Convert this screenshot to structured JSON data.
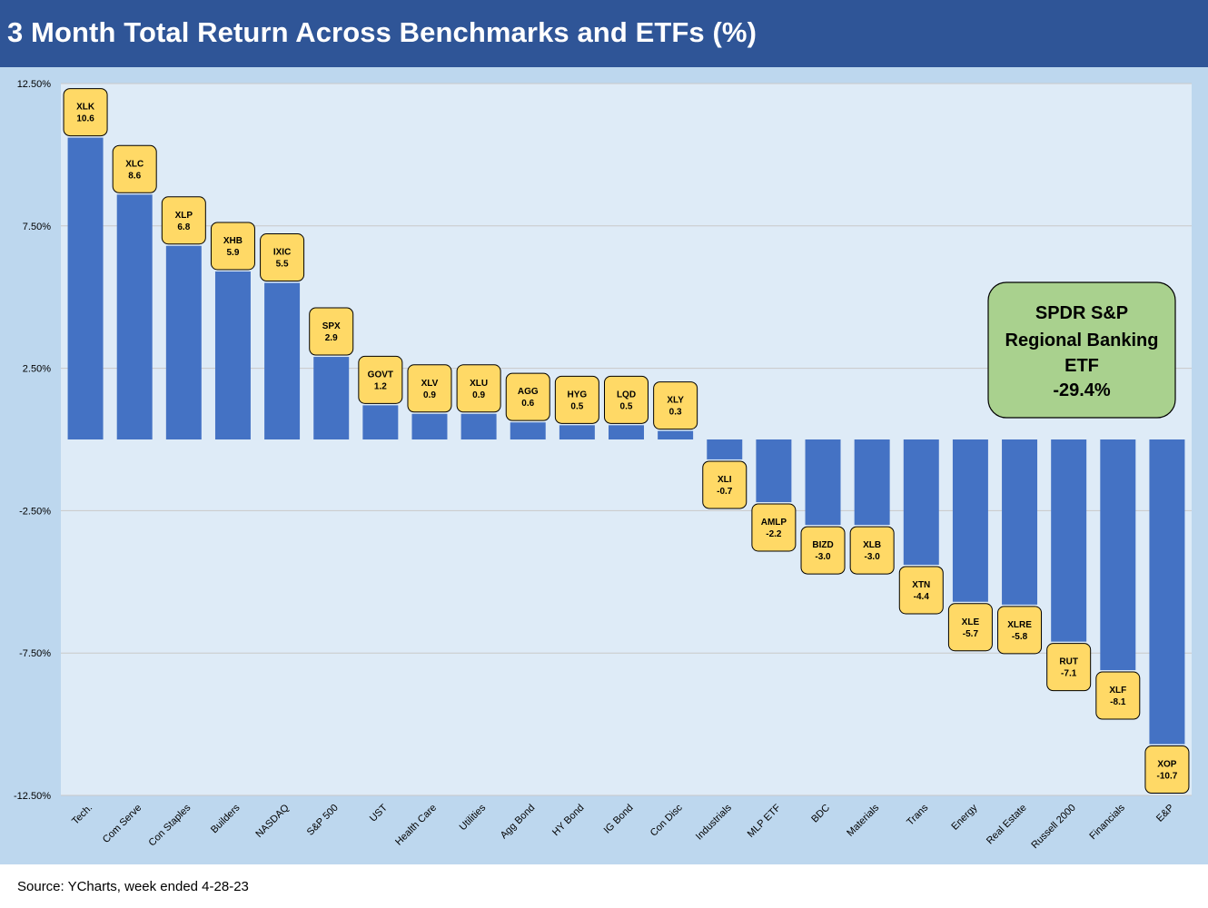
{
  "title": "3 Month Total Return Across Benchmarks and ETFs (%)",
  "source": "Source: YCharts, week ended 4-28-23",
  "colors": {
    "title_bar": "#2f5597",
    "panel": "#bdd7ee",
    "plot_area": "#deebf7",
    "bar": "#4472c4",
    "label_box": "#ffd966",
    "callout_box": "#a9d18e"
  },
  "callout": {
    "lines": [
      "SPDR S&P",
      "Regional Banking",
      "ETF",
      "-29.4%"
    ]
  },
  "chart_data": {
    "type": "bar",
    "categories": [
      "Tech.",
      "Com Serve",
      "Con Staples",
      "Builders",
      "NASDAQ",
      "S&P 500",
      "UST",
      "Health Care",
      "Utilities",
      "Agg Bond",
      "HY Bond",
      "IG Bond",
      "Con Disc",
      "Industrials",
      "MLP ETF",
      "BDC",
      "Materials",
      "Trans",
      "Energy",
      "Real Estate",
      "Russell 2000",
      "Financials",
      "E&P"
    ],
    "tickers": [
      "XLK",
      "XLC",
      "XLP",
      "XHB",
      "IXIC",
      "SPX",
      "GOVT",
      "XLV",
      "XLU",
      "AGG",
      "HYG",
      "LQD",
      "XLY",
      "XLI",
      "AMLP",
      "BIZD",
      "XLB",
      "XTN",
      "XLE",
      "XLRE",
      "RUT",
      "XLF",
      "XOP"
    ],
    "values": [
      10.6,
      8.6,
      6.8,
      5.9,
      5.5,
      2.9,
      1.2,
      0.9,
      0.9,
      0.6,
      0.5,
      0.5,
      0.3,
      -0.7,
      -2.2,
      -3.0,
      -3.0,
      -4.4,
      -5.7,
      -5.8,
      -7.1,
      -8.1,
      -10.7
    ],
    "value_labels": [
      "10.6",
      "8.6",
      "6.8",
      "5.9",
      "5.5",
      "2.9",
      "1.2",
      "0.9",
      "0.9",
      "0.6",
      "0.5",
      "0.5",
      "0.3",
      "-0.7",
      "-2.2",
      "-3.0",
      "-3.0",
      "-4.4",
      "-5.7",
      "-5.8",
      "-7.1",
      "-8.1",
      "-10.7"
    ],
    "yticks": [
      12.5,
      7.5,
      2.5,
      -2.5,
      -7.5,
      -12.5
    ],
    "ytick_labels": [
      "12.50%",
      "7.50%",
      "2.50%",
      "-2.50%",
      "-7.50%",
      "-12.50%"
    ],
    "ylim": [
      -12.5,
      12.5
    ],
    "grid": true,
    "legend": false
  }
}
